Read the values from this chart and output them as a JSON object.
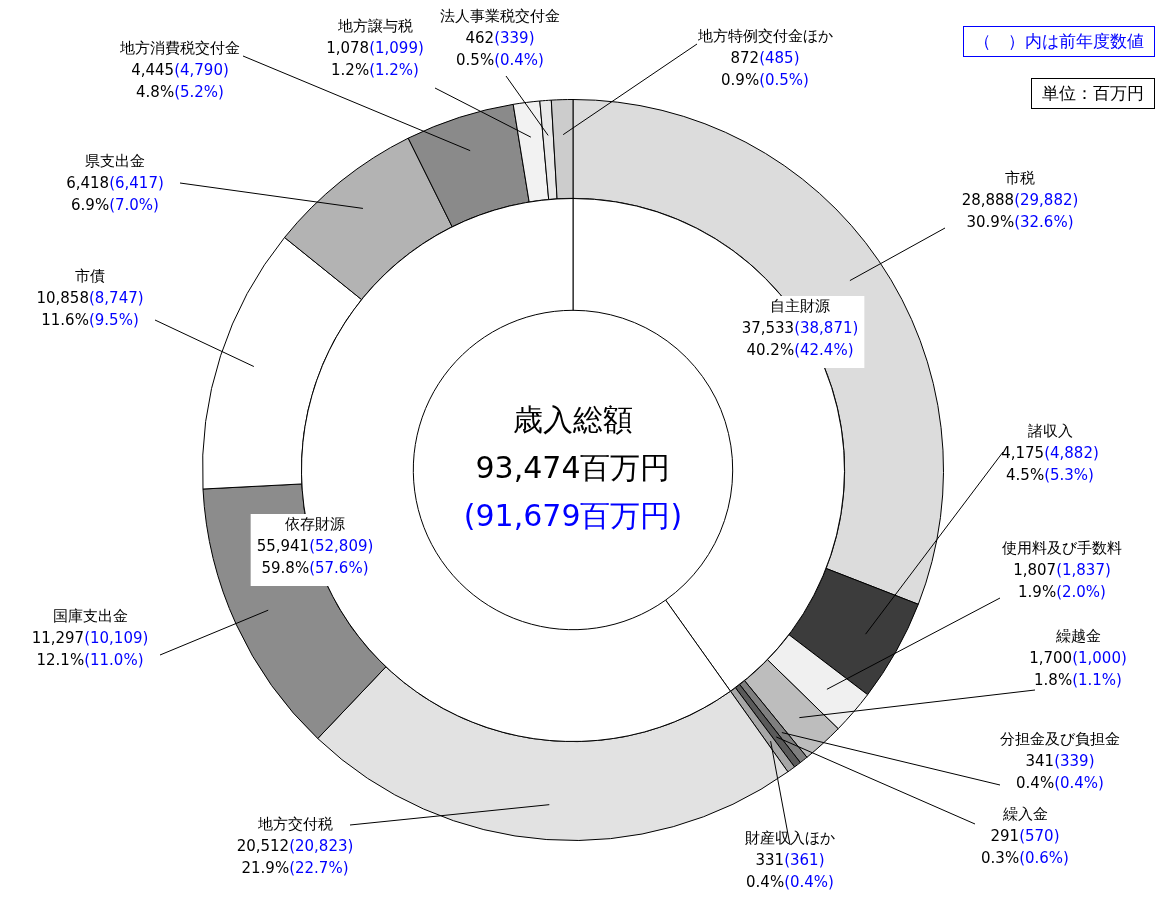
{
  "chart_data": [
    {
      "type": "donut",
      "categories": [
        "市税",
        "諸収入",
        "使用料及び手数料",
        "繰越金",
        "分担金及び負担金",
        "繰入金",
        "財産収入ほか",
        "地方交付税",
        "国庫支出金",
        "市債",
        "県支出金",
        "地方消費税交付金",
        "地方譲与税",
        "法人事業税交付金",
        "地方特例交付金ほか"
      ],
      "values": [
        28888,
        4175,
        1807,
        1700,
        341,
        291,
        331,
        20512,
        11297,
        10858,
        6418,
        4445,
        1078,
        462,
        872
      ],
      "colors": [
        "#dcdcdc",
        "#3c3c3c",
        "#f0f0f0",
        "#bdbdbd",
        "#7f7f7f",
        "#5a5a5a",
        "#a6a6a6",
        "#e2e2e2",
        "#8c8c8c",
        "#ffffff",
        "#b3b3b3",
        "#8a8a8a",
        "#f2f2f2",
        "#e8e8e8",
        "#cccccc"
      ],
      "value_labels": [
        "28,888(29,882)\n30.9%(32.6%)",
        "4,175(4,882)\n4.5%(5.3%)",
        "1,807(1,837)\n1.9%(2.0%)",
        "1,700(1,000)\n1.8%(1.1%)",
        "341(339)\n0.4%(0.4%)",
        "291(570)\n0.3%(0.6%)",
        "331(361)\n0.4%(0.4%)",
        "20,512(20,823)\n21.9%(22.7%)",
        "11,297(10,109)\n12.1%(11.0%)",
        "10,858(8,747)\n11.6%(9.5%)",
        "6,418(6,417)\n6.9%(7.0%)",
        "4,445(4,790)\n4.8%(5.2%)",
        "1,078(1,099)\n1.2%(1.2%)",
        "462(339)\n0.5%(0.4%)",
        "872(485)\n0.9%(0.5%)"
      ],
      "annotations": [
        "（　）内は前年度数値",
        "単位：百万円"
      ]
    },
    {
      "type": "donut",
      "categories": [
        "自主財源",
        "依存財源"
      ],
      "values": [
        37533,
        55941
      ],
      "colors": [
        "#ffffff",
        "#ffffff"
      ],
      "value_labels": [
        "37,533(38,871)\n40.2%(42.4%)",
        "55,941(52,809)\n59.8%(57.6%)"
      ],
      "title": "歳入総額",
      "annotations": [
        "93,474百万円",
        "(91,679百万円)"
      ]
    }
  ]
}
